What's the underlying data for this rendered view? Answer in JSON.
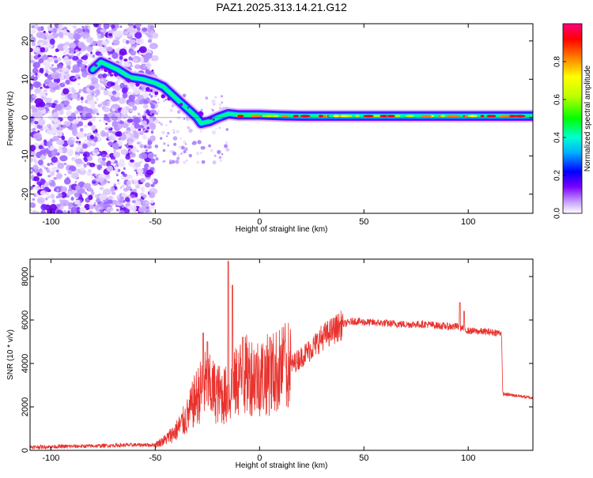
{
  "chart_data": [
    {
      "type": "heatmap",
      "title": "PAZ1.2025.313.14.21.G12",
      "xlabel": "Height of straight line (km)",
      "ylabel": "Frequency (Hz)",
      "xlim": [
        -110,
        131
      ],
      "ylim": [
        -25,
        24.5
      ],
      "xticks": [
        -100,
        -50,
        0,
        50,
        100
      ],
      "yticks": [
        20,
        10,
        0,
        -10,
        -20
      ],
      "colorbar": {
        "label": "Normalized spectral amplitude",
        "range": [
          0,
          1
        ],
        "ticks": [
          0.0,
          0.2,
          0.4,
          0.6,
          0.8
        ],
        "tick_labels": [
          "0.0",
          "0.2",
          "0.4",
          "0.6",
          "0.8"
        ],
        "colors": [
          "#ffffff",
          "#c8a0ff",
          "#7a00ff",
          "#0000ff",
          "#00b0ff",
          "#00ffd0",
          "#00ff00",
          "#c0ff00",
          "#ffff00",
          "#ff8000",
          "#ff0000",
          "#ff0080"
        ]
      },
      "ridge": [
        {
          "x": -80,
          "y": 12.5
        },
        {
          "x": -76,
          "y": 14.5
        },
        {
          "x": -72,
          "y": 13.5
        },
        {
          "x": -68,
          "y": 12.5
        },
        {
          "x": -62,
          "y": 10.5
        },
        {
          "x": -56,
          "y": 10
        },
        {
          "x": -50,
          "y": 9
        },
        {
          "x": -46,
          "y": 8
        },
        {
          "x": -42,
          "y": 6
        },
        {
          "x": -38,
          "y": 4
        },
        {
          "x": -34,
          "y": 2
        },
        {
          "x": -30,
          "y": 0
        },
        {
          "x": -28,
          "y": -1.5
        },
        {
          "x": -24,
          "y": -1
        },
        {
          "x": -20,
          "y": 0
        },
        {
          "x": -15,
          "y": 1
        },
        {
          "x": -10,
          "y": 0.7
        },
        {
          "x": 0,
          "y": 0.7
        },
        {
          "x": 10,
          "y": 0.5
        },
        {
          "x": 20,
          "y": 0.4
        },
        {
          "x": 40,
          "y": 0.4
        },
        {
          "x": 60,
          "y": 0.4
        },
        {
          "x": 80,
          "y": 0.4
        },
        {
          "x": 100,
          "y": 0.4
        },
        {
          "x": 120,
          "y": 0.4
        },
        {
          "x": 131,
          "y": 0.4
        }
      ],
      "noise_region_x": [
        -110,
        -50
      ]
    },
    {
      "type": "line",
      "title": "",
      "xlabel": "Height of straight line (km)",
      "ylabel": "SNR (10 * v/v)",
      "xlim": [
        -110,
        131
      ],
      "ylim": [
        0,
        8800
      ],
      "xticks": [
        -100,
        -50,
        0,
        50,
        100
      ],
      "yticks": [
        0,
        2000,
        4000,
        6000,
        8000
      ],
      "series_color": "#e8322d",
      "envelope": [
        {
          "x": -110,
          "y": 150
        },
        {
          "x": -80,
          "y": 200
        },
        {
          "x": -60,
          "y": 250
        },
        {
          "x": -50,
          "y": 250
        },
        {
          "x": -45,
          "y": 500
        },
        {
          "x": -40,
          "y": 900
        },
        {
          "x": -35,
          "y": 1500
        },
        {
          "x": -30,
          "y": 2500
        },
        {
          "x": -26,
          "y": 3000
        },
        {
          "x": -20,
          "y": 2600
        },
        {
          "x": -15,
          "y": 2500
        },
        {
          "x": -10,
          "y": 3300
        },
        {
          "x": -5,
          "y": 3500
        },
        {
          "x": 0,
          "y": 3400
        },
        {
          "x": 5,
          "y": 3500
        },
        {
          "x": 10,
          "y": 3700
        },
        {
          "x": 15,
          "y": 3900
        },
        {
          "x": 20,
          "y": 4300
        },
        {
          "x": 25,
          "y": 4700
        },
        {
          "x": 30,
          "y": 5200
        },
        {
          "x": 35,
          "y": 5500
        },
        {
          "x": 40,
          "y": 5800
        },
        {
          "x": 45,
          "y": 5950
        },
        {
          "x": 50,
          "y": 5900
        },
        {
          "x": 60,
          "y": 5850
        },
        {
          "x": 70,
          "y": 5800
        },
        {
          "x": 80,
          "y": 5800
        },
        {
          "x": 90,
          "y": 5700
        },
        {
          "x": 95,
          "y": 5700
        },
        {
          "x": 100,
          "y": 5500
        },
        {
          "x": 110,
          "y": 5450
        },
        {
          "x": 116,
          "y": 5400
        },
        {
          "x": 116.5,
          "y": 2600
        },
        {
          "x": 120,
          "y": 2550
        },
        {
          "x": 125,
          "y": 2500
        },
        {
          "x": 131,
          "y": 2400
        }
      ],
      "spikes": [
        {
          "x": -27,
          "y": 5400
        },
        {
          "x": -25,
          "y": 5000
        },
        {
          "x": -15,
          "y": 8700
        },
        {
          "x": -13,
          "y": 7600
        },
        {
          "x": -8,
          "y": 5200
        },
        {
          "x": 5,
          "y": 5200
        },
        {
          "x": 12,
          "y": 5000
        },
        {
          "x": 96,
          "y": 6800
        },
        {
          "x": 98,
          "y": 6400
        }
      ]
    }
  ]
}
